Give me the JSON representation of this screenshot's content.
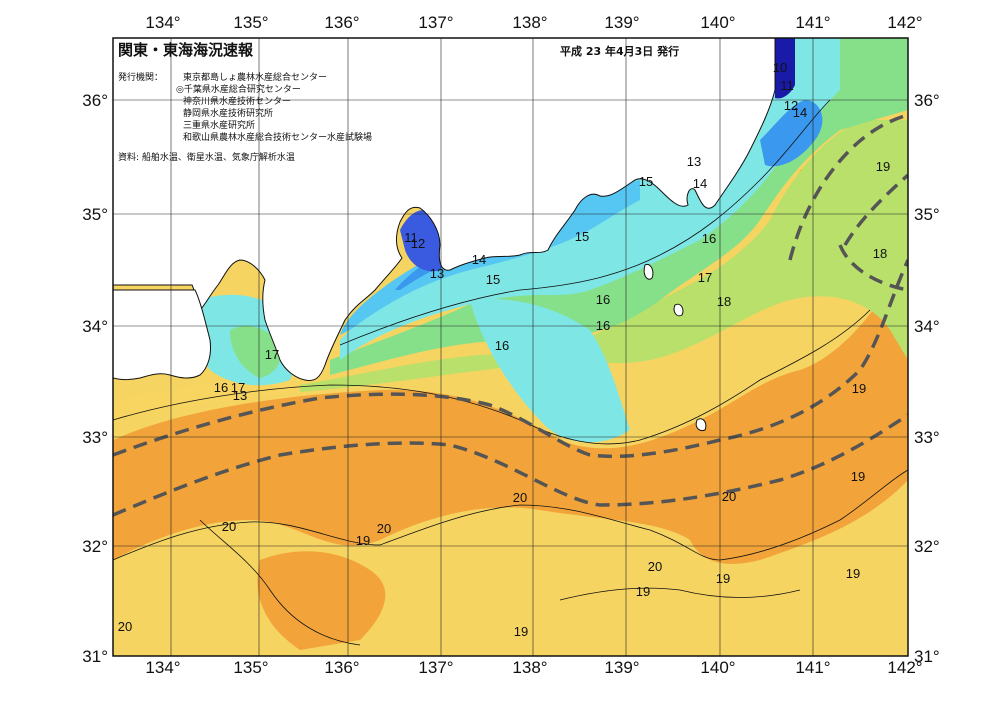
{
  "header": {
    "title": "関東・東海海況速報",
    "issue_date": "平成 23 年4月3日 発行"
  },
  "institutions": {
    "label": "発行機関：",
    "items": [
      "東京都島しょ農林水産総合センター",
      "◎千葉県水産総合研究センター",
      "神奈川県水産技術センター",
      "静岡県水産技術研究所",
      "三重県水産研究所",
      "和歌山県農林水産総合技術センター水産試験場"
    ]
  },
  "source": "資料: 船舶水温、衛星水温、気象庁解析水温",
  "axes": {
    "lon_top": [
      "134°",
      "135°",
      "136°",
      "137°",
      "138°",
      "139°",
      "140°",
      "141°",
      "142°"
    ],
    "lon_bottom": [
      "134°",
      "135°",
      "136°",
      "137°",
      "138°",
      "139°",
      "140°",
      "141°",
      "142°"
    ],
    "lat_left": [
      "36°",
      "35°",
      "34°",
      "33°",
      "32°",
      "31°"
    ],
    "lat_right": [
      "36°",
      "35°",
      "34°",
      "33°",
      "32°",
      "31°"
    ]
  },
  "isotherm_labels": [
    "10",
    "11",
    "12",
    "14",
    "13",
    "14",
    "15",
    "15",
    "16",
    "17",
    "18",
    "11",
    "12",
    "13",
    "14",
    "15",
    "16",
    "16",
    "16",
    "17",
    "17",
    "16",
    "13",
    "18",
    "19",
    "19",
    "19",
    "19",
    "20",
    "20",
    "20",
    "19",
    "20",
    "19",
    "20",
    "19",
    "20",
    "19"
  ],
  "colors": {
    "c10": "#1a1aa8",
    "c12": "#3a5be0",
    "c14": "#3c9aef",
    "c15": "#55c8f3",
    "c16": "#7ee8e8",
    "c17": "#85e28a",
    "c18": "#b7e46a",
    "c19": "#f8d863",
    "c20": "#f3a838",
    "c21": "#ee9a2c",
    "land": "#ffffff",
    "grid": "#222222"
  }
}
